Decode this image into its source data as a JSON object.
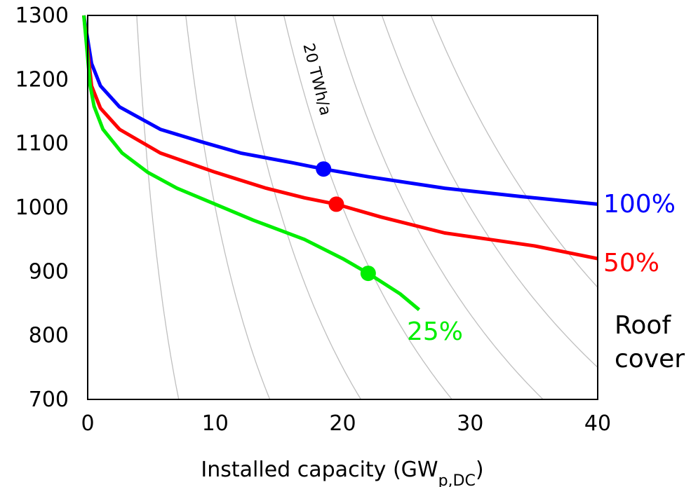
{
  "chart_data": {
    "type": "line",
    "xlabel": "Installed capacity (GW",
    "xlabel_sub": "p,DC",
    "xlabel_suffix": ")",
    "ylabel": "",
    "xlim": [
      0,
      40
    ],
    "ylim": [
      700,
      1300
    ],
    "xticks": [
      "0",
      "10",
      "20",
      "30",
      "40"
    ],
    "yticks": [
      "700",
      "800",
      "900",
      "1000",
      "1100",
      "1200",
      "1300"
    ],
    "grid": false,
    "legend_title": [
      "Roof",
      "cover"
    ],
    "annotation": "20 TWh/a",
    "iso_lines_TWh": [
      5,
      10,
      15,
      20,
      25,
      30,
      35
    ],
    "series": [
      {
        "name": "100%",
        "color": "#0000ff",
        "x": [
          -0.3,
          0.3,
          1,
          2.5,
          5.7,
          9,
          12,
          16,
          18.5,
          22,
          28,
          34,
          40
        ],
        "y": [
          1300,
          1225,
          1190,
          1157,
          1122,
          1102,
          1085,
          1070,
          1060,
          1048,
          1030,
          1017,
          1005
        ],
        "marker": {
          "x": 18.5,
          "y": 1060
        }
      },
      {
        "name": "50%",
        "color": "#ff0000",
        "x": [
          -0.3,
          0.3,
          1,
          2.5,
          5.7,
          10,
          14,
          17,
          19.5,
          23,
          28,
          35,
          40
        ],
        "y": [
          1300,
          1190,
          1155,
          1122,
          1085,
          1055,
          1030,
          1015,
          1005,
          985,
          960,
          940,
          920
        ],
        "marker": {
          "x": 19.5,
          "y": 1005
        }
      },
      {
        "name": "25%",
        "color": "#00ee00",
        "x": [
          -0.3,
          0.2,
          0.5,
          1.2,
          2.7,
          4.7,
          7,
          10,
          13,
          17,
          20,
          22,
          24.5,
          26
        ],
        "y": [
          1300,
          1190,
          1158,
          1122,
          1085,
          1055,
          1030,
          1005,
          980,
          950,
          920,
          897,
          865,
          840
        ],
        "marker": {
          "x": 22,
          "y": 897
        }
      }
    ]
  }
}
